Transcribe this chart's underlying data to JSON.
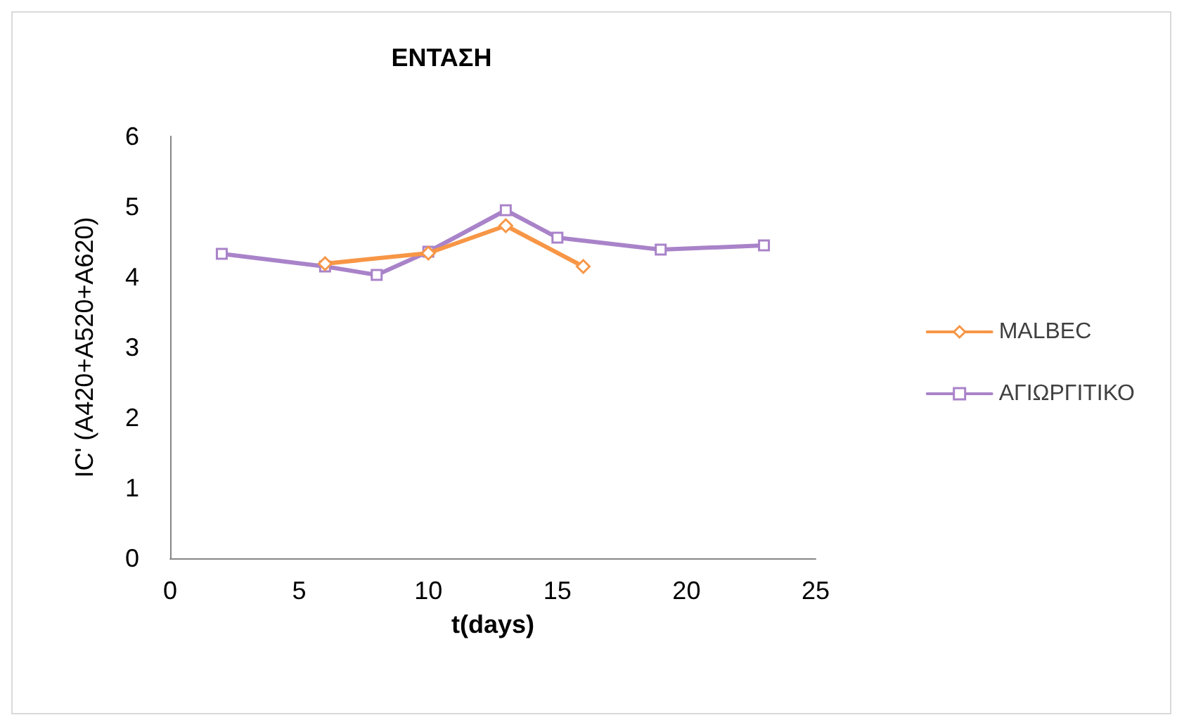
{
  "chart_data": {
    "type": "line",
    "title": "ΕΝΤΑΣΗ",
    "xlabel": "t(days)",
    "ylabel": "IC' (A420+A520+A620)",
    "xlim": [
      0,
      25
    ],
    "xticks": [
      0,
      5,
      10,
      15,
      20,
      25
    ],
    "ylim": [
      0,
      6
    ],
    "yticks": [
      0,
      1,
      2,
      3,
      4,
      5,
      6
    ],
    "grid": false,
    "legend": "right",
    "series": [
      {
        "name": "MALBEC",
        "color": "#f79646",
        "marker": "diamond",
        "x": [
          6,
          10,
          13,
          16
        ],
        "values": [
          4.19,
          4.34,
          4.73,
          4.15
        ]
      },
      {
        "name": "ΑΓΙΩΡΓΙΤΙΚΟ",
        "color": "#a983c9",
        "marker": "square",
        "x": [
          2,
          6,
          8,
          10,
          13,
          15,
          19,
          23
        ],
        "values": [
          4.33,
          4.15,
          4.03,
          4.36,
          4.95,
          4.56,
          4.39,
          4.45
        ]
      }
    ]
  }
}
